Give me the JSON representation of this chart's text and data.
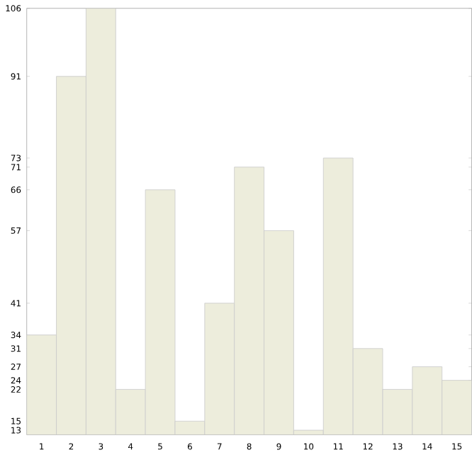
{
  "chart_data": {
    "type": "bar",
    "categories": [
      "1",
      "2",
      "3",
      "4",
      "5",
      "6",
      "7",
      "8",
      "9",
      "10",
      "11",
      "12",
      "13",
      "14",
      "15"
    ],
    "values": [
      34,
      91,
      106,
      22,
      66,
      15,
      41,
      71,
      57,
      13,
      73,
      31,
      22,
      27,
      24
    ],
    "color": "#ededdc",
    "ylim": [
      12,
      106
    ],
    "yticks": [
      13,
      15,
      22,
      24,
      27,
      31,
      34,
      41,
      57,
      66,
      71,
      73,
      91,
      106
    ]
  }
}
